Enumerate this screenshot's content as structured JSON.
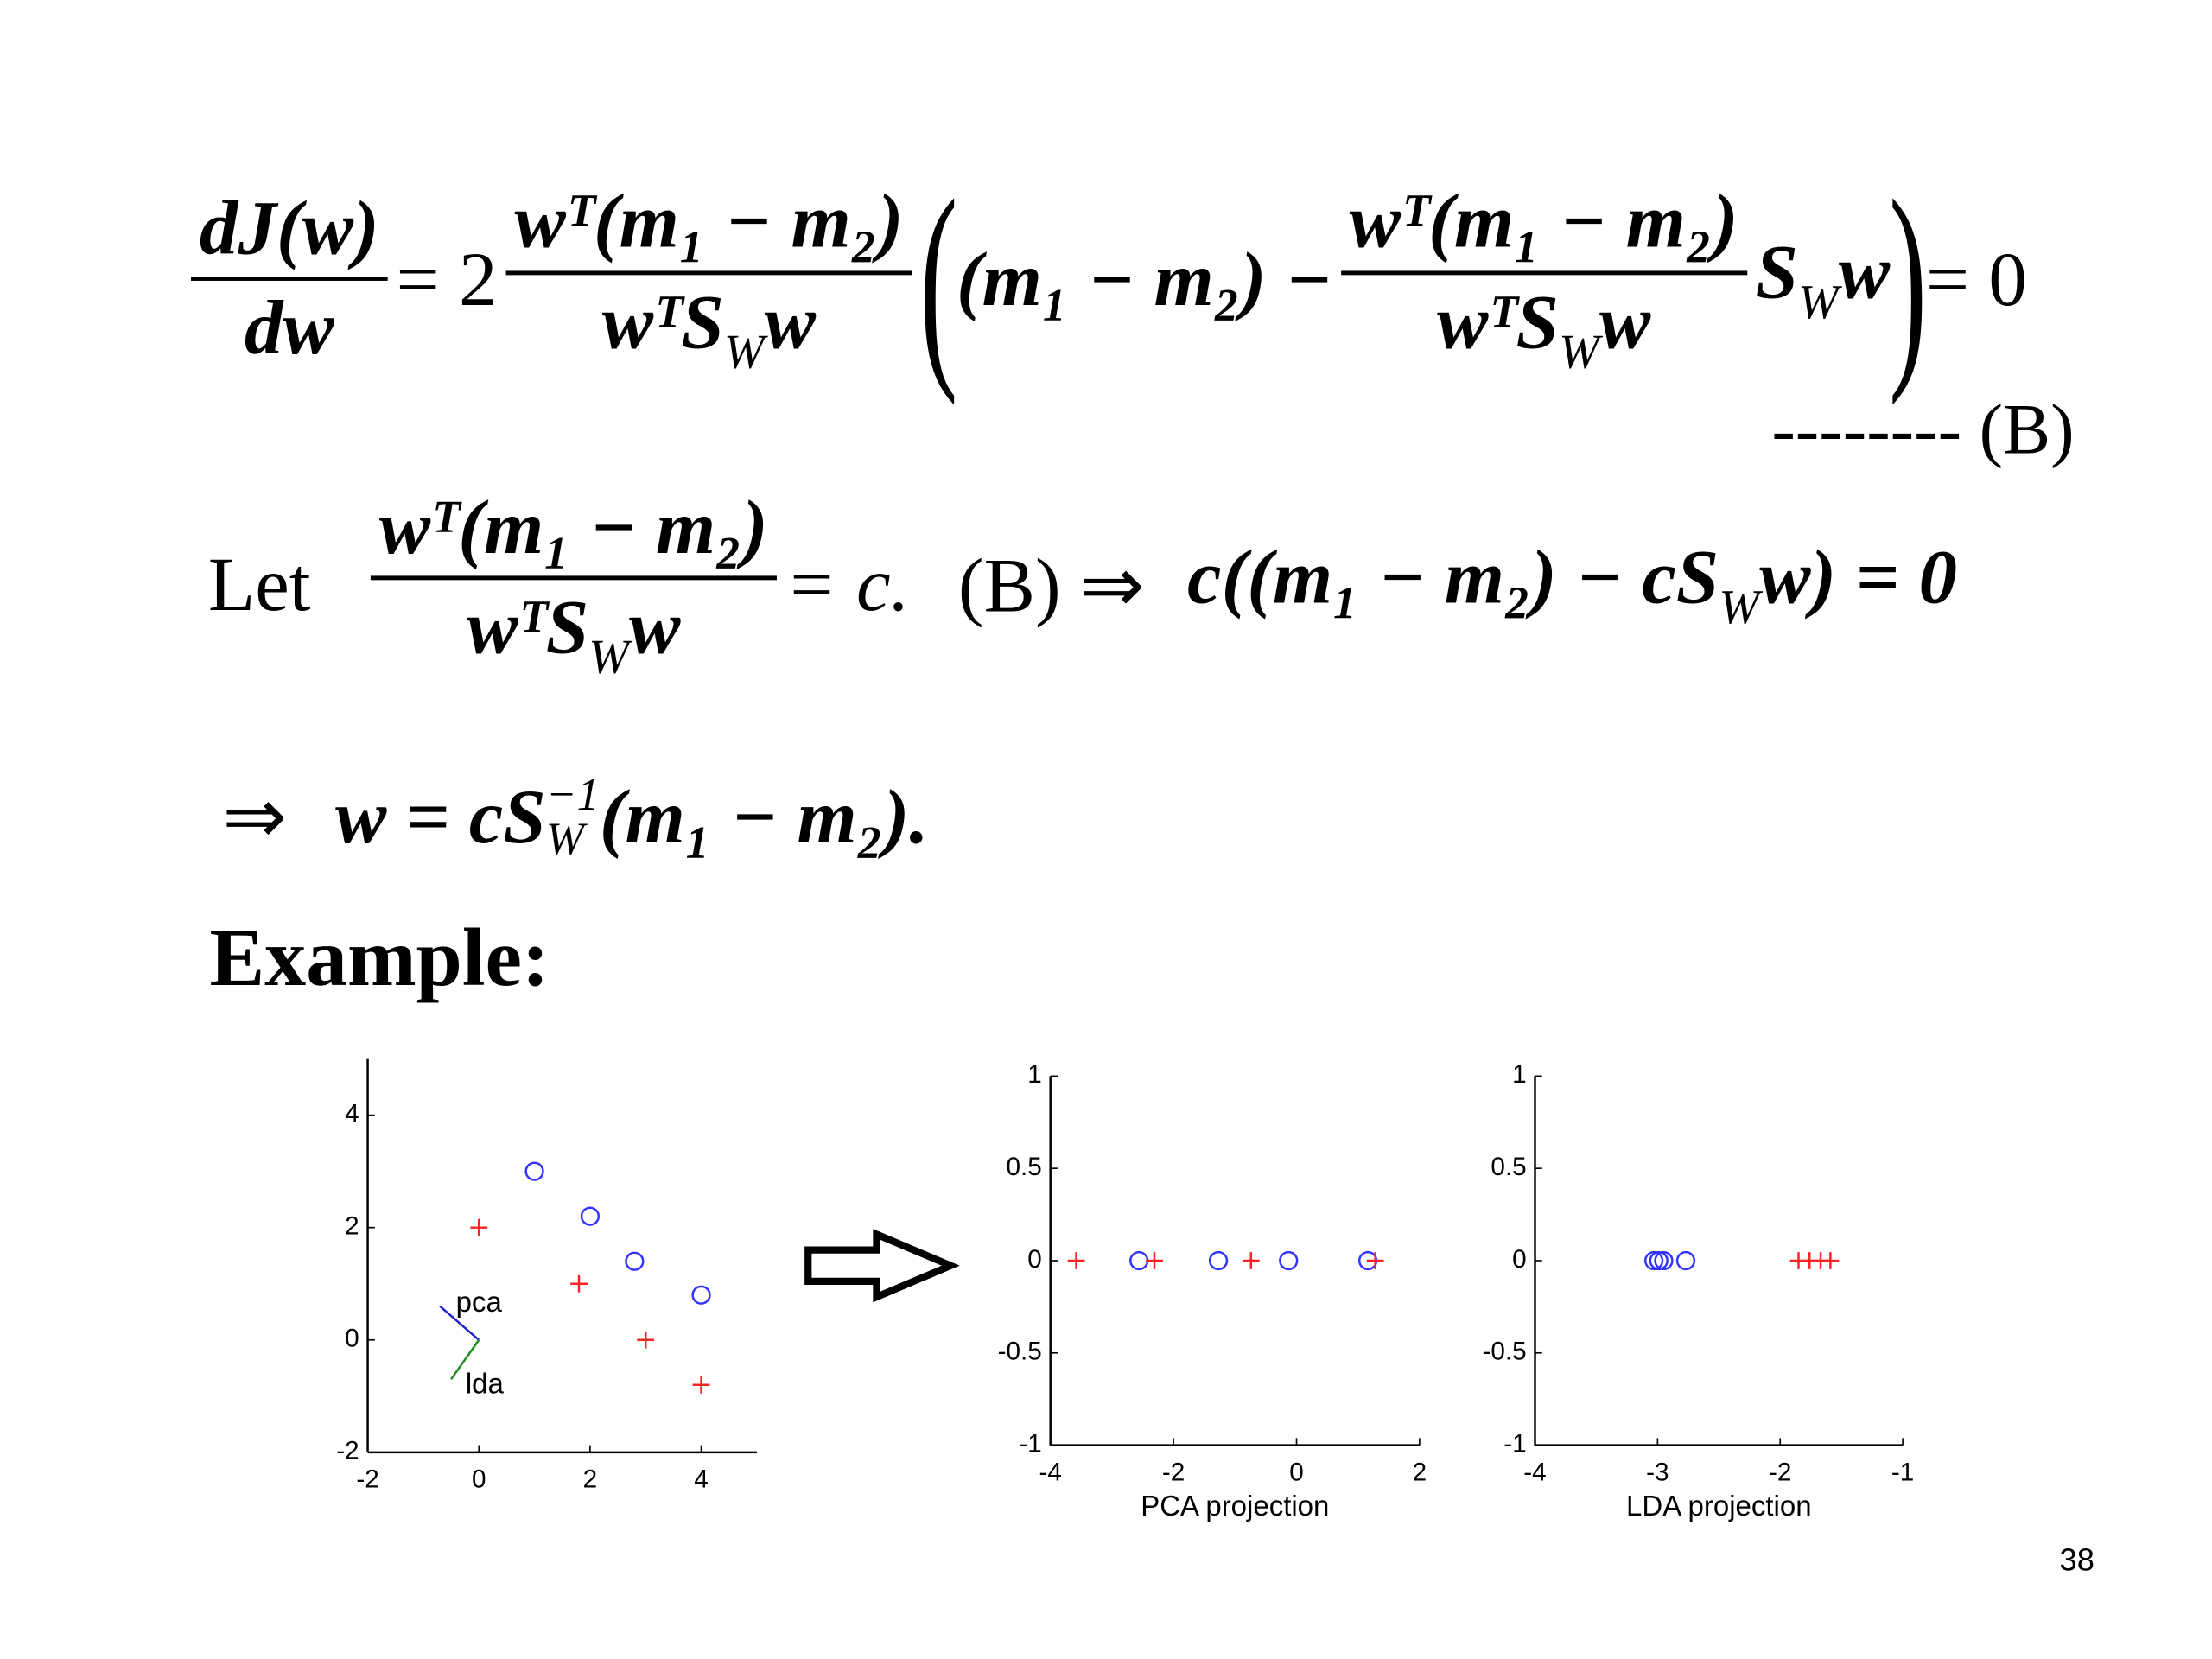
{
  "equation_1": {
    "lhs_numerator": "dJ(w)",
    "lhs_denominator": "dw",
    "equals_two": "= 2",
    "fraction_numerator": "wᵀ(m₁ − m₂)",
    "fraction_denominator": [
      "wᵀS",
      "W",
      "w"
    ],
    "open": "(",
    "difference": "(m₁ − m₂) −",
    "trailing": [
      "S",
      "W",
      "w"
    ],
    "close": ")",
    "rhs": "= 0",
    "tag": "-------- (B)"
  },
  "equation_2": {
    "let": "Let",
    "fraction_numerator": "wᵀ(m₁ − m₂)",
    "fraction_denominator": [
      "wᵀS",
      "W",
      "w"
    ],
    "equals_c": "= c.",
    "implies": "(B)  ⇒",
    "rhs": [
      "c((m₁ − m₂) − cS",
      "W",
      "w) = 0"
    ]
  },
  "equation_3": {
    "implies": "⇒",
    "lhs": "w = cS",
    "superscript": "−1",
    "subscript": "W",
    "rhs": "(m₁ − m₂)."
  },
  "heading": "Example:",
  "page_number": "38",
  "chart_data": [
    {
      "type": "scatter",
      "xlim": [
        -2,
        5
      ],
      "ylim": [
        -2,
        5
      ],
      "xticks": [
        -2,
        0,
        2,
        4
      ],
      "yticks": [
        -2,
        0,
        2,
        4
      ],
      "series": [
        {
          "marker": "o",
          "color": "#3333ff",
          "x": [
            1,
            2,
            2.8,
            4
          ],
          "y": [
            3,
            2.2,
            1.4,
            0.8
          ]
        },
        {
          "marker": "+",
          "color": "#ff2222",
          "x": [
            0,
            1.8,
            3,
            4
          ],
          "y": [
            2,
            1,
            0,
            -0.8
          ]
        },
        {
          "marker": "line",
          "name": "pca",
          "color": "#2222cc",
          "x": [
            -0.7,
            0
          ],
          "y": [
            0.6,
            0
          ]
        },
        {
          "marker": "line",
          "name": "lda",
          "color": "#228822",
          "x": [
            -0.5,
            0
          ],
          "y": [
            -0.7,
            0
          ]
        }
      ]
    },
    {
      "type": "scatter",
      "xlabel": "PCA projection",
      "xlim": [
        -4,
        2
      ],
      "ylim": [
        -1,
        1
      ],
      "xticks": [
        -4,
        -2,
        0,
        2
      ],
      "yticks": [
        -1,
        -0.5,
        0,
        0.5,
        1
      ],
      "series": [
        {
          "marker": "o",
          "color": "#3333ff",
          "x": [
            -2.56,
            -1.27,
            -0.13,
            1.16
          ],
          "y": [
            0,
            0,
            0,
            0
          ]
        },
        {
          "marker": "+",
          "color": "#ff2222",
          "x": [
            -3.58,
            -2.31,
            -0.74,
            1.28
          ],
          "y": [
            0,
            0,
            0,
            0
          ]
        }
      ]
    },
    {
      "type": "scatter",
      "xlabel": "LDA projection",
      "xlim": [
        -4,
        -1
      ],
      "ylim": [
        -1,
        1
      ],
      "xticks": [
        -4,
        -3,
        -2,
        -1
      ],
      "yticks": [
        -1,
        -0.5,
        0,
        0.5,
        1
      ],
      "series": [
        {
          "marker": "o",
          "color": "#3333ff",
          "x": [
            -3.03,
            -2.99,
            -2.95,
            -2.77
          ],
          "y": [
            0,
            0,
            0,
            0
          ]
        },
        {
          "marker": "+",
          "color": "#ff2222",
          "x": [
            -1.85,
            -1.76,
            -1.67,
            -1.59
          ],
          "y": [
            0,
            0,
            0,
            0
          ]
        }
      ]
    }
  ]
}
